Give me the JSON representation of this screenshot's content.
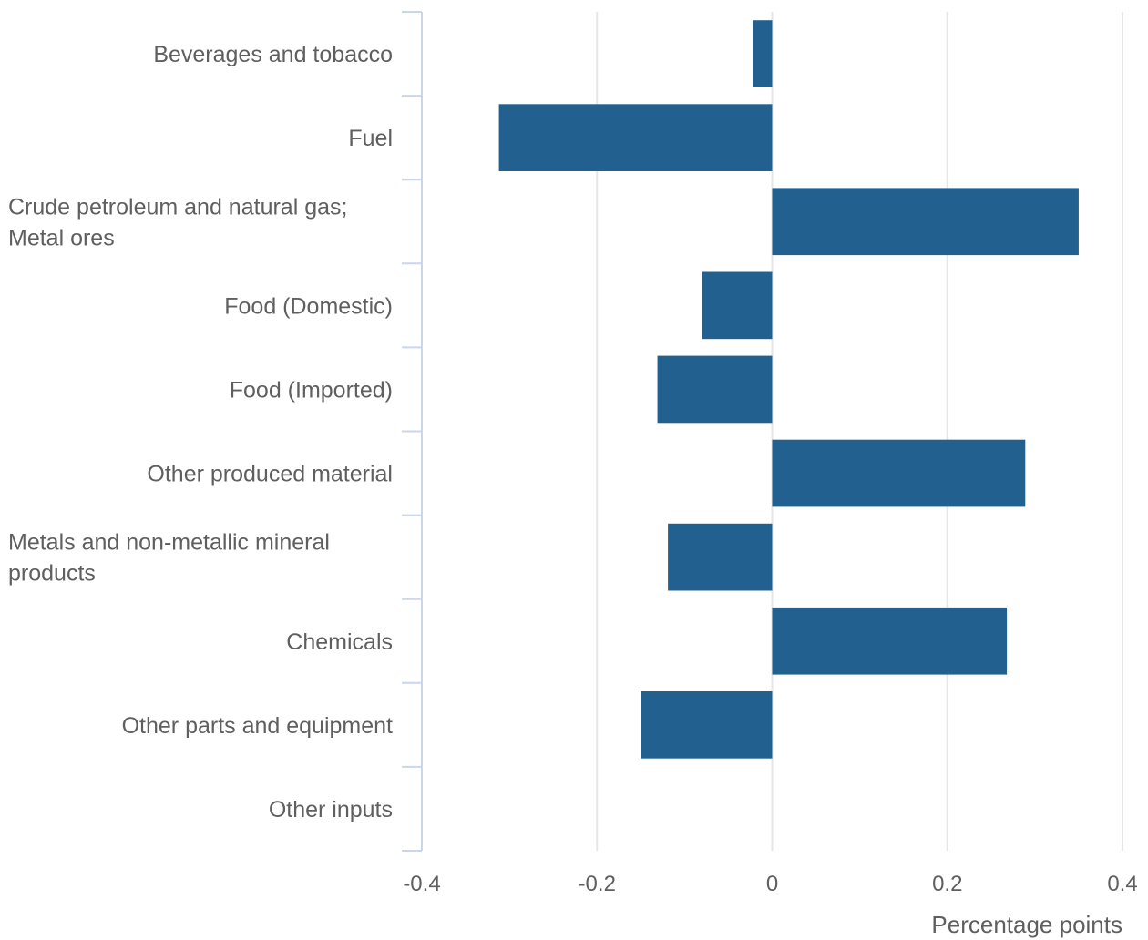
{
  "chart_data": {
    "type": "bar",
    "orientation": "horizontal",
    "categories": [
      [
        "Beverages and tobacco"
      ],
      [
        "Fuel"
      ],
      [
        "Crude petroleum and natural gas;",
        "Metal ores"
      ],
      [
        "Food (Domestic)"
      ],
      [
        "Food (Imported)"
      ],
      [
        "Other produced material"
      ],
      [
        "Metals and non-metallic mineral",
        "products"
      ],
      [
        "Chemicals"
      ],
      [
        "Other parts and equipment"
      ],
      [
        "Other inputs"
      ]
    ],
    "values": [
      -0.022,
      -0.312,
      0.35,
      -0.08,
      -0.131,
      0.289,
      -0.119,
      0.268,
      -0.15,
      0
    ],
    "xlim": [
      -0.4,
      0.4
    ],
    "xticks": [
      -0.4,
      -0.2,
      0,
      0.2,
      0.4
    ],
    "xtick_labels": [
      "-0.4",
      "-0.2",
      "0",
      "0.2",
      "0.4"
    ],
    "xlabel": "Percentage points",
    "ylabel": "",
    "title": "",
    "grid": "vertical",
    "legend": "none",
    "bar_color": "#21608f",
    "grid_color": "#e6e6e6",
    "axis_color": "#ccd6eb"
  }
}
